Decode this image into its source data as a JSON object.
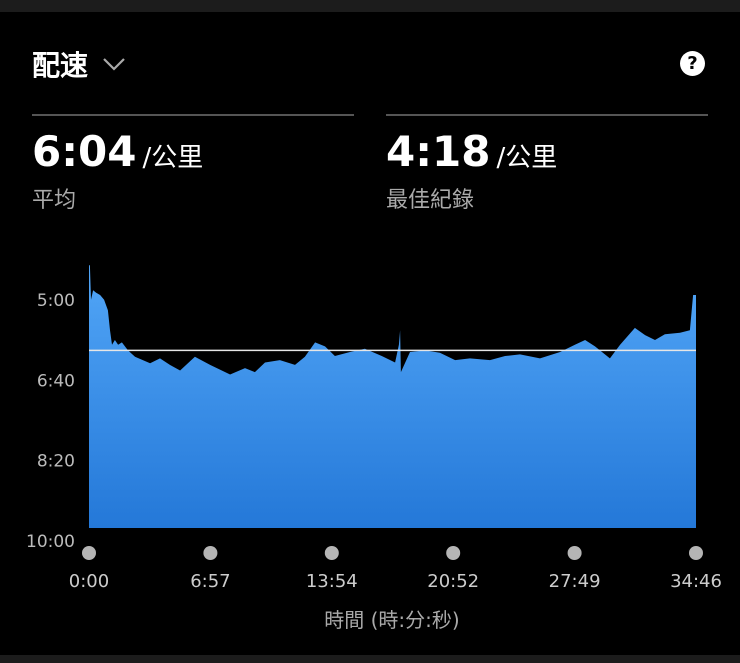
{
  "header": {
    "title": "配速",
    "help_icon": "question-circle-icon",
    "dropdown_icon": "chevron-down-icon"
  },
  "stats": [
    {
      "value": "6:04",
      "unit": "/公里",
      "label": "平均"
    },
    {
      "value": "4:18",
      "unit": "/公里",
      "label": "最佳紀錄"
    }
  ],
  "chart_data": {
    "type": "area",
    "xlabel": "時間 (時:分:秒)",
    "ylabel": "",
    "x_ticks": [
      "0:00",
      "6:57",
      "13:54",
      "20:52",
      "27:49",
      "34:46"
    ],
    "y_ticks": [
      "5:00",
      "6:40",
      "8:20",
      "10:00"
    ],
    "xlim": [
      "0:00",
      "34:46"
    ],
    "ylim": [
      "10:00",
      "5:00"
    ],
    "y_inverted": true,
    "grid": false,
    "average_line": "6:04",
    "colors": {
      "fill_top": "#52a6f7",
      "fill_bottom": "#2478d8",
      "average_line": "#e6e6e6"
    },
    "points": [
      [
        "0:00",
        "4:18"
      ],
      [
        "0:03",
        "4:18"
      ],
      [
        "0:07",
        "5:01"
      ],
      [
        "0:14",
        "4:49"
      ],
      [
        "0:24",
        "4:52"
      ],
      [
        "0:38",
        "4:55"
      ],
      [
        "0:52",
        "5:01"
      ],
      [
        "1:05",
        "5:14"
      ],
      [
        "1:12",
        "5:39"
      ],
      [
        "1:19",
        "5:57"
      ],
      [
        "1:29",
        "5:51"
      ],
      [
        "1:40",
        "5:57"
      ],
      [
        "1:53",
        "5:54"
      ],
      [
        "2:14",
        "6:04"
      ],
      [
        "2:38",
        "6:12"
      ],
      [
        "3:30",
        "6:20"
      ],
      [
        "4:04",
        "6:14"
      ],
      [
        "4:38",
        "6:22"
      ],
      [
        "5:13",
        "6:29"
      ],
      [
        "6:04",
        "6:12"
      ],
      [
        "6:56",
        "6:22"
      ],
      [
        "8:05",
        "6:34"
      ],
      [
        "8:56",
        "6:26"
      ],
      [
        "9:30",
        "6:31"
      ],
      [
        "10:05",
        "6:19"
      ],
      [
        "10:56",
        "6:16"
      ],
      [
        "11:48",
        "6:22"
      ],
      [
        "12:22",
        "6:12"
      ],
      [
        "12:57",
        "5:54"
      ],
      [
        "13:31",
        "5:59"
      ],
      [
        "14:05",
        "6:11"
      ],
      [
        "14:57",
        "6:06"
      ],
      [
        "15:48",
        "6:02"
      ],
      [
        "16:40",
        "6:10"
      ],
      [
        "17:32",
        "6:19"
      ],
      [
        "17:45",
        "5:57"
      ],
      [
        "17:49",
        "5:39"
      ],
      [
        "17:52",
        "6:31"
      ],
      [
        "18:23",
        "6:06"
      ],
      [
        "19:15",
        "6:04"
      ],
      [
        "20:06",
        "6:07"
      ],
      [
        "20:58",
        "6:16"
      ],
      [
        "21:49",
        "6:14"
      ],
      [
        "22:58",
        "6:16"
      ],
      [
        "23:50",
        "6:11"
      ],
      [
        "24:41",
        "6:09"
      ],
      [
        "25:50",
        "6:14"
      ],
      [
        "26:59",
        "6:06"
      ],
      [
        "27:50",
        "5:57"
      ],
      [
        "28:25",
        "5:51"
      ],
      [
        "28:59",
        "5:59"
      ],
      [
        "29:50",
        "6:14"
      ],
      [
        "30:25",
        "5:57"
      ],
      [
        "31:16",
        "5:36"
      ],
      [
        "31:51",
        "5:45"
      ],
      [
        "32:25",
        "5:51"
      ],
      [
        "32:59",
        "5:44"
      ],
      [
        "33:51",
        "5:42"
      ],
      [
        "34:25",
        "5:39"
      ],
      [
        "34:36",
        "4:55"
      ],
      [
        "34:43",
        "4:55"
      ],
      [
        "34:46",
        "4:55"
      ]
    ]
  }
}
